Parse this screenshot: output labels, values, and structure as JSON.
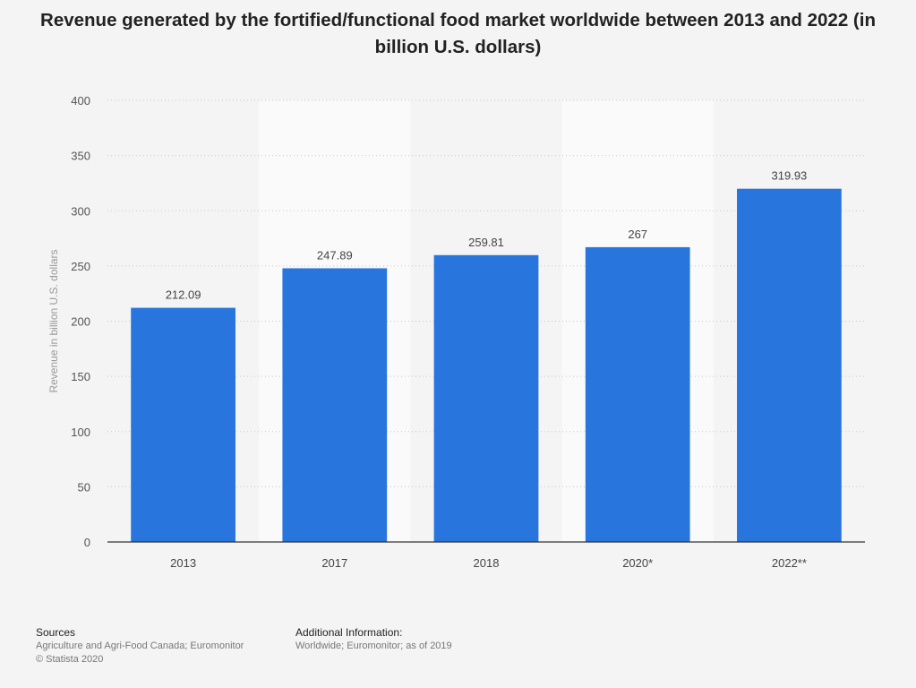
{
  "chart_data": {
    "type": "bar",
    "title": "Revenue generated by the fortified/functional food market worldwide between 2013 and 2022 (in billion U.S. dollars)",
    "xlabel": "",
    "ylabel": "Revenue in billion U.S. dollars",
    "categories": [
      "2013",
      "2017",
      "2018",
      "2020*",
      "2022**"
    ],
    "values": [
      212.09,
      247.89,
      259.81,
      267,
      319.93
    ],
    "data_labels": [
      "212.09",
      "247.89",
      "259.81",
      "267",
      "319.93"
    ],
    "ylim": [
      0,
      400
    ],
    "yticks": [
      0,
      50,
      100,
      150,
      200,
      250,
      300,
      350,
      400
    ],
    "grid": true,
    "bar_color": "#2876dd",
    "alt_band_color": "#fafafa"
  },
  "footer": {
    "sources_heading": "Sources",
    "sources_line1": "Agriculture and Agri-Food Canada; Euromonitor",
    "sources_line2": "© Statista 2020",
    "info_heading": "Additional Information:",
    "info_line1": "Worldwide; Euromonitor; as of 2019"
  }
}
